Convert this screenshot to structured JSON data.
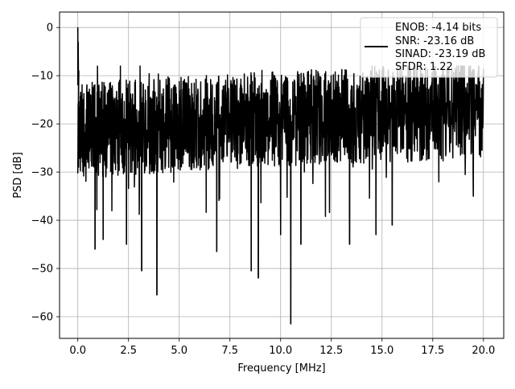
{
  "chart_data": {
    "type": "line",
    "title": "",
    "xlabel": "Frequency [MHz]",
    "ylabel": "PSD [dB]",
    "xlim": [
      -0.9,
      21.0
    ],
    "ylim": [
      -64.5,
      3.2
    ],
    "grid": true,
    "x_ticks": [
      0.0,
      2.5,
      5.0,
      7.5,
      10.0,
      12.5,
      15.0,
      17.5,
      20.0
    ],
    "x_tick_labels": [
      "0.0",
      "2.5",
      "5.0",
      "7.5",
      "10.0",
      "12.5",
      "15.0",
      "17.5",
      "20.0"
    ],
    "y_ticks": [
      0,
      -10,
      -20,
      -30,
      -40,
      -50,
      -60
    ],
    "y_tick_labels": [
      "0",
      "−10",
      "−20",
      "−30",
      "−40",
      "−50",
      "−60"
    ],
    "legend_position": "top-right",
    "legend_lines": [
      "ENOB: -4.14 bits",
      "SNR: -23.16 dB",
      "SINAD: -23.19 dB",
      "SFDR: 1.22"
    ],
    "series": [
      {
        "color": "#000000",
        "line_style": "solid",
        "frequency_range_mhz": [
          0.0,
          20.0
        ],
        "noise_floor_trend_db": {
          "x": [
            0.0,
            5.0,
            10.0,
            15.0,
            20.0
          ],
          "y": [
            -21.5,
            -20.0,
            -19.0,
            -18.0,
            -17.5
          ]
        },
        "peak": {
          "x": 0.0,
          "y": 0.0
        },
        "notable_dips": [
          {
            "x": 0.85,
            "y": -46.0
          },
          {
            "x": 1.25,
            "y": -44.0
          },
          {
            "x": 2.4,
            "y": -45.0
          },
          {
            "x": 3.15,
            "y": -50.5
          },
          {
            "x": 3.9,
            "y": -55.5
          },
          {
            "x": 6.85,
            "y": -46.5
          },
          {
            "x": 8.55,
            "y": -50.5
          },
          {
            "x": 8.9,
            "y": -52.0
          },
          {
            "x": 10.0,
            "y": -43.0
          },
          {
            "x": 10.5,
            "y": -61.5
          },
          {
            "x": 11.0,
            "y": -45.0
          },
          {
            "x": 13.4,
            "y": -45.0
          },
          {
            "x": 14.7,
            "y": -43.0
          },
          {
            "x": 15.5,
            "y": -41.0
          },
          {
            "x": 19.5,
            "y": -35.0
          }
        ]
      }
    ]
  }
}
